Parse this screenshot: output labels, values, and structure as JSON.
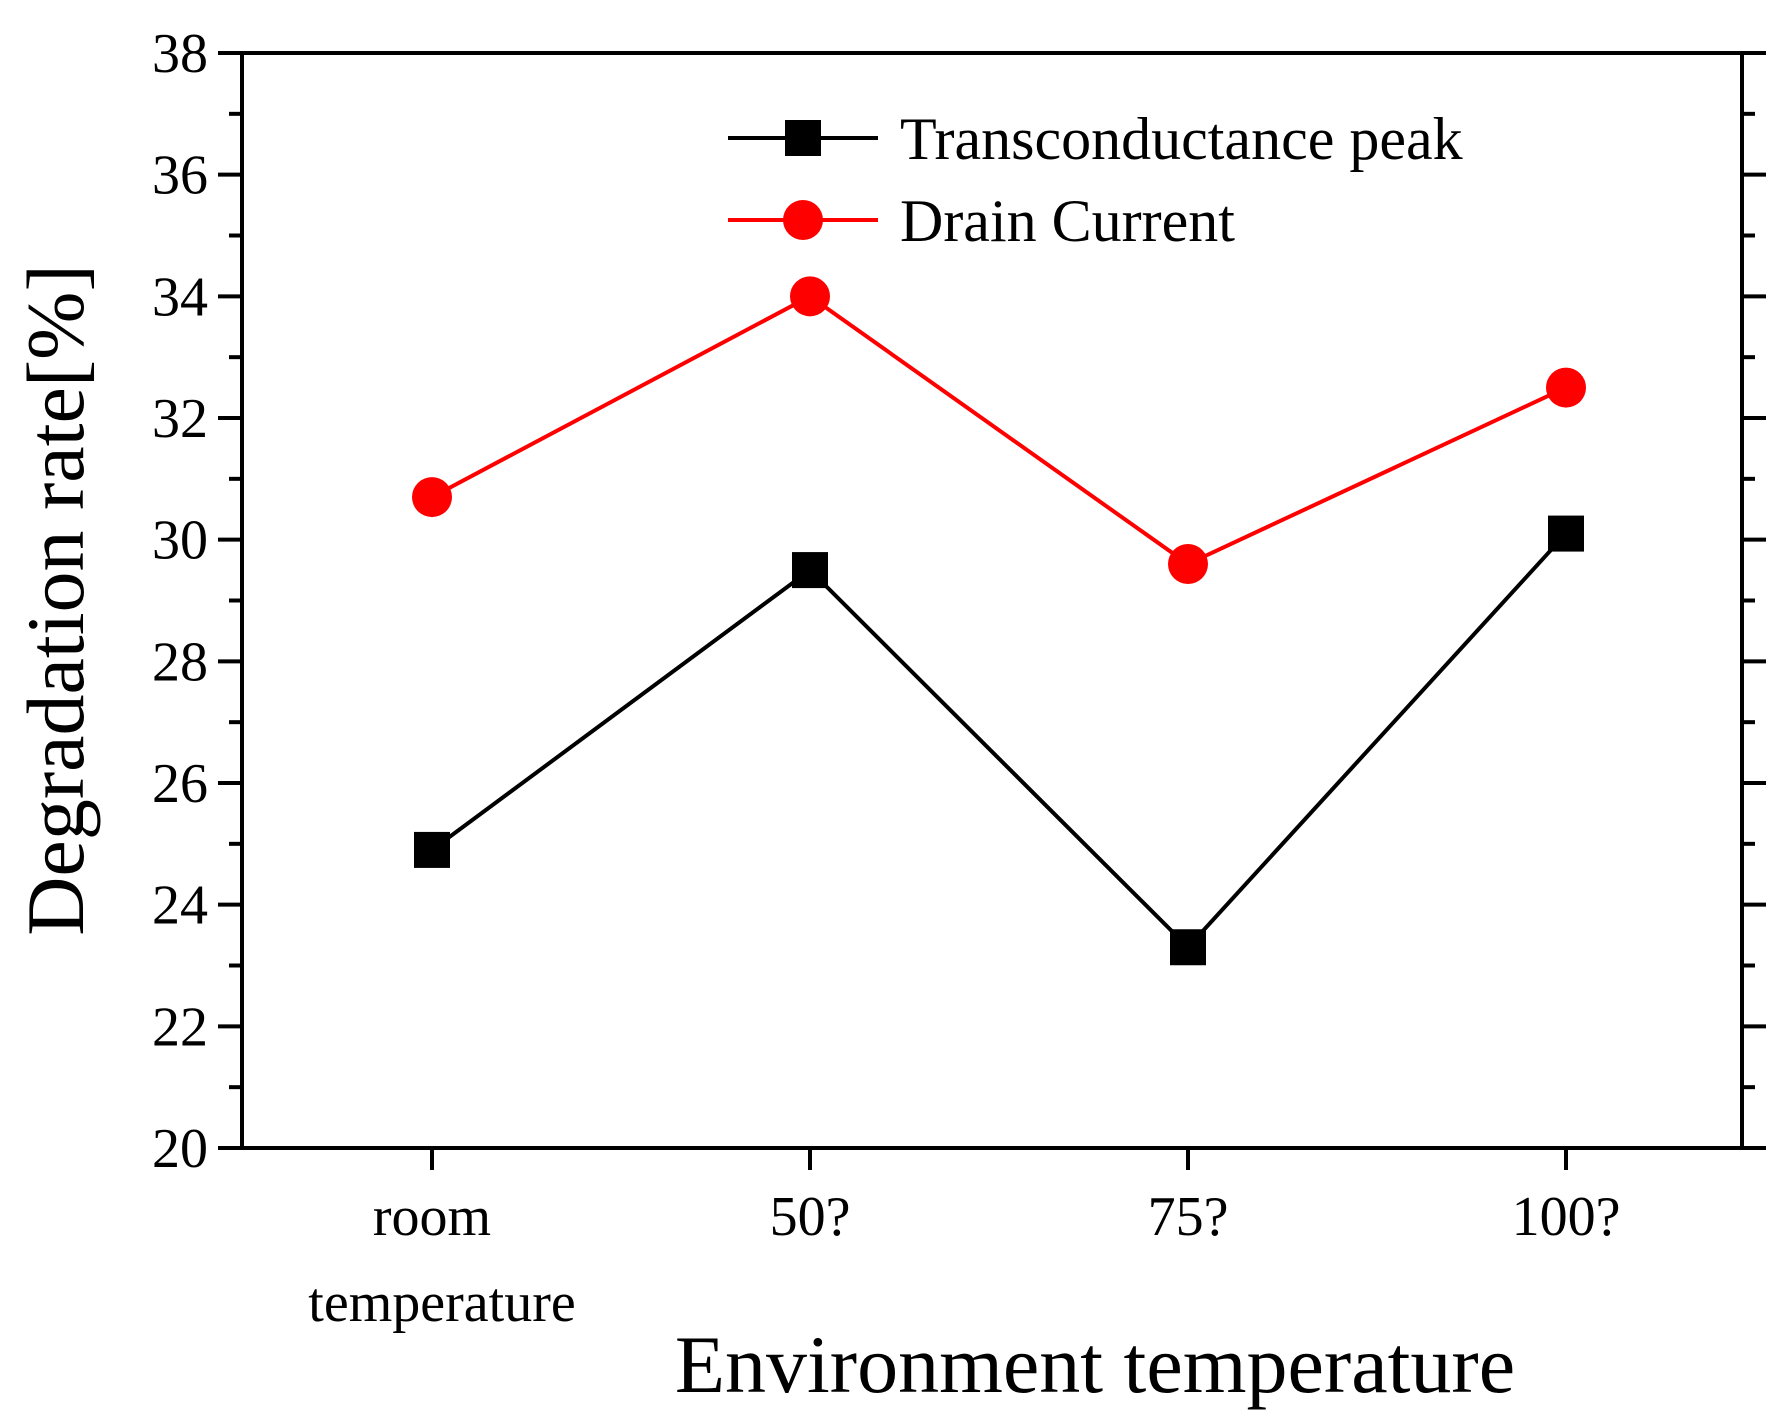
{
  "chart_data": {
    "type": "line",
    "title": "",
    "xlabel": "Environment temperature",
    "ylabel": "Degradation rate[%]",
    "categories": [
      "room temperature",
      "50?",
      "75?",
      "100?"
    ],
    "category_lines": [
      [
        "room",
        "temperature"
      ],
      [
        "50?"
      ],
      [
        "75?"
      ],
      [
        "100?"
      ]
    ],
    "ylim": [
      20,
      38
    ],
    "ytick_step": 2,
    "yticks": [
      20,
      22,
      24,
      26,
      28,
      30,
      32,
      34,
      36,
      38
    ],
    "ytick_labels": [
      "20",
      "22",
      "24",
      "26",
      "28",
      "30",
      "32",
      "34",
      "36",
      "38"
    ],
    "grid": false,
    "legend_position": "top-right",
    "series": [
      {
        "name": "Transconductance peak",
        "marker": "square",
        "color": "#000000",
        "values": [
          24.9,
          29.5,
          23.3,
          30.1
        ]
      },
      {
        "name": "Drain Current",
        "marker": "circle",
        "color": "#ff0000",
        "values": [
          30.7,
          34.0,
          29.6,
          32.5
        ]
      }
    ]
  }
}
